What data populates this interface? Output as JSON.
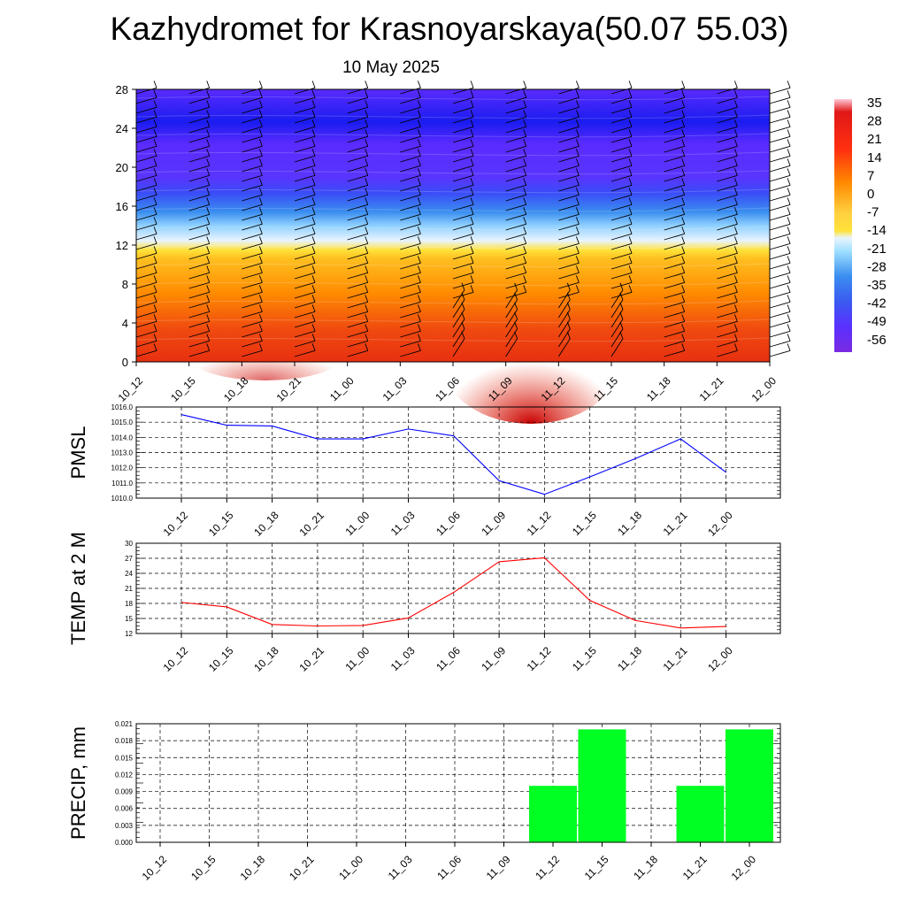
{
  "title": "Kazhydromet for Krasnoyarskaya(50.07 55.03)",
  "subtitle": "10 May 2025",
  "chart_data": [
    {
      "type": "heatmap",
      "time_labels": [
        "10_12",
        "10_15",
        "10_18",
        "10_21",
        "11_00",
        "11_03",
        "11_06",
        "11_09",
        "11_12",
        "11_15",
        "11_18",
        "11_21",
        "12_00"
      ],
      "y_ticks": [
        "0",
        "4",
        "8",
        "12",
        "16",
        "20",
        "24",
        "28"
      ],
      "ylim": [
        0,
        28
      ],
      "colorbar_labels": [
        "35",
        "28",
        "21",
        "14",
        "7",
        "0",
        "-7",
        "-14",
        "-21",
        "-28",
        "-35",
        "-42",
        "-49",
        "-56"
      ],
      "colorbar_range": [
        -60,
        38
      ],
      "colors": {
        "cold": "#5a2bff",
        "cool": "#3a8ef0",
        "pale": "#e8f4ff",
        "warm_yellow": "#ffe23a",
        "orange": "#ff8a00",
        "red": "#e83010",
        "dark_red": "#c80000"
      },
      "notes": "Temperature cross-section vs altitude with wind barbs"
    },
    {
      "type": "line",
      "ylabel": "PMSL",
      "categories": [
        "10_12",
        "10_15",
        "10_18",
        "10_21",
        "11_00",
        "11_03",
        "11_06",
        "11_09",
        "11_12",
        "11_15",
        "11_18",
        "11_21",
        "12_00"
      ],
      "values": [
        1015.5,
        1014.8,
        1014.75,
        1013.9,
        1013.9,
        1014.55,
        1014.1,
        1011.15,
        1010.25,
        1011.4,
        1012.6,
        1013.9,
        1011.7
      ],
      "ylim": [
        1010.0,
        1016.0
      ],
      "y_ticks": [
        "1016.0",
        "1015.0",
        "1014.0",
        "1013.0",
        "1012.0",
        "1011.0",
        "1010.0"
      ],
      "color": "#0000ff",
      "grid": true
    },
    {
      "type": "line",
      "ylabel": "TEMP at 2 M",
      "categories": [
        "10_12",
        "10_15",
        "10_18",
        "10_21",
        "11_00",
        "11_03",
        "11_06",
        "11_09",
        "11_12",
        "11_15",
        "11_18",
        "11_21",
        "12_00"
      ],
      "values": [
        18.2,
        17.3,
        13.8,
        13.5,
        13.6,
        15.1,
        20.2,
        26.3,
        27.1,
        18.6,
        14.6,
        13.1,
        13.4
      ],
      "ylim": [
        12,
        30
      ],
      "y_ticks": [
        "30",
        "27",
        "24",
        "21",
        "18",
        "15",
        "12"
      ],
      "color": "#ff0000",
      "grid": true
    },
    {
      "type": "bar",
      "ylabel": "PRECIP, mm",
      "categories": [
        "10_12",
        "10_15",
        "10_18",
        "10_21",
        "11_00",
        "11_03",
        "11_06",
        "11_09",
        "11_12",
        "11_15",
        "11_18",
        "11_21",
        "12_00"
      ],
      "values": [
        0,
        0,
        0,
        0,
        0,
        0,
        0,
        0,
        0.01,
        0.02,
        0,
        0.01,
        0.02
      ],
      "ylim": [
        0,
        0.021
      ],
      "y_ticks": [
        "0.021",
        "0.018",
        "0.015",
        "0.012",
        "0.009",
        "0.006",
        "0.003",
        "0.000"
      ],
      "color": "#00ff22",
      "grid": true
    }
  ]
}
